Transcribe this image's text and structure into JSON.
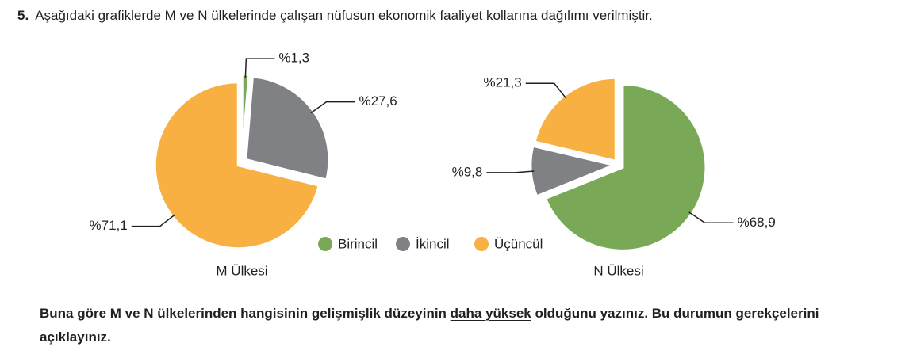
{
  "question": {
    "number": "5.",
    "text": "Aşağıdaki grafiklerde M ve N ülkelerinde çalışan nüfusun ekonomik faaliyet kollarına dağılımı verilmiştir."
  },
  "legend": [
    {
      "name": "Birincil",
      "color": "#79a957"
    },
    {
      "name": "İkincil",
      "color": "#808184"
    },
    {
      "name": "Üçüncül",
      "color": "#f9b042"
    }
  ],
  "chart_data": [
    {
      "type": "pie",
      "title": "M Ülkesi",
      "values": [
        1.3,
        27.6,
        71.1
      ],
      "value_labels": [
        "%1,3",
        "%27,6",
        "%71,1"
      ]
    },
    {
      "type": "pie",
      "title": "N Ülkesi",
      "values": [
        68.9,
        9.8,
        21.3
      ],
      "value_labels": [
        "%68,9",
        "%9,8",
        "%21,3"
      ]
    }
  ],
  "prompt": [
    "Buna göre M ve N ülkelerinden hangisinin gelişmişlik düzeyinin ",
    "daha yüksek",
    " olduğunu yazınız. Bu durumun gerekçelerini açıklayınız."
  ]
}
